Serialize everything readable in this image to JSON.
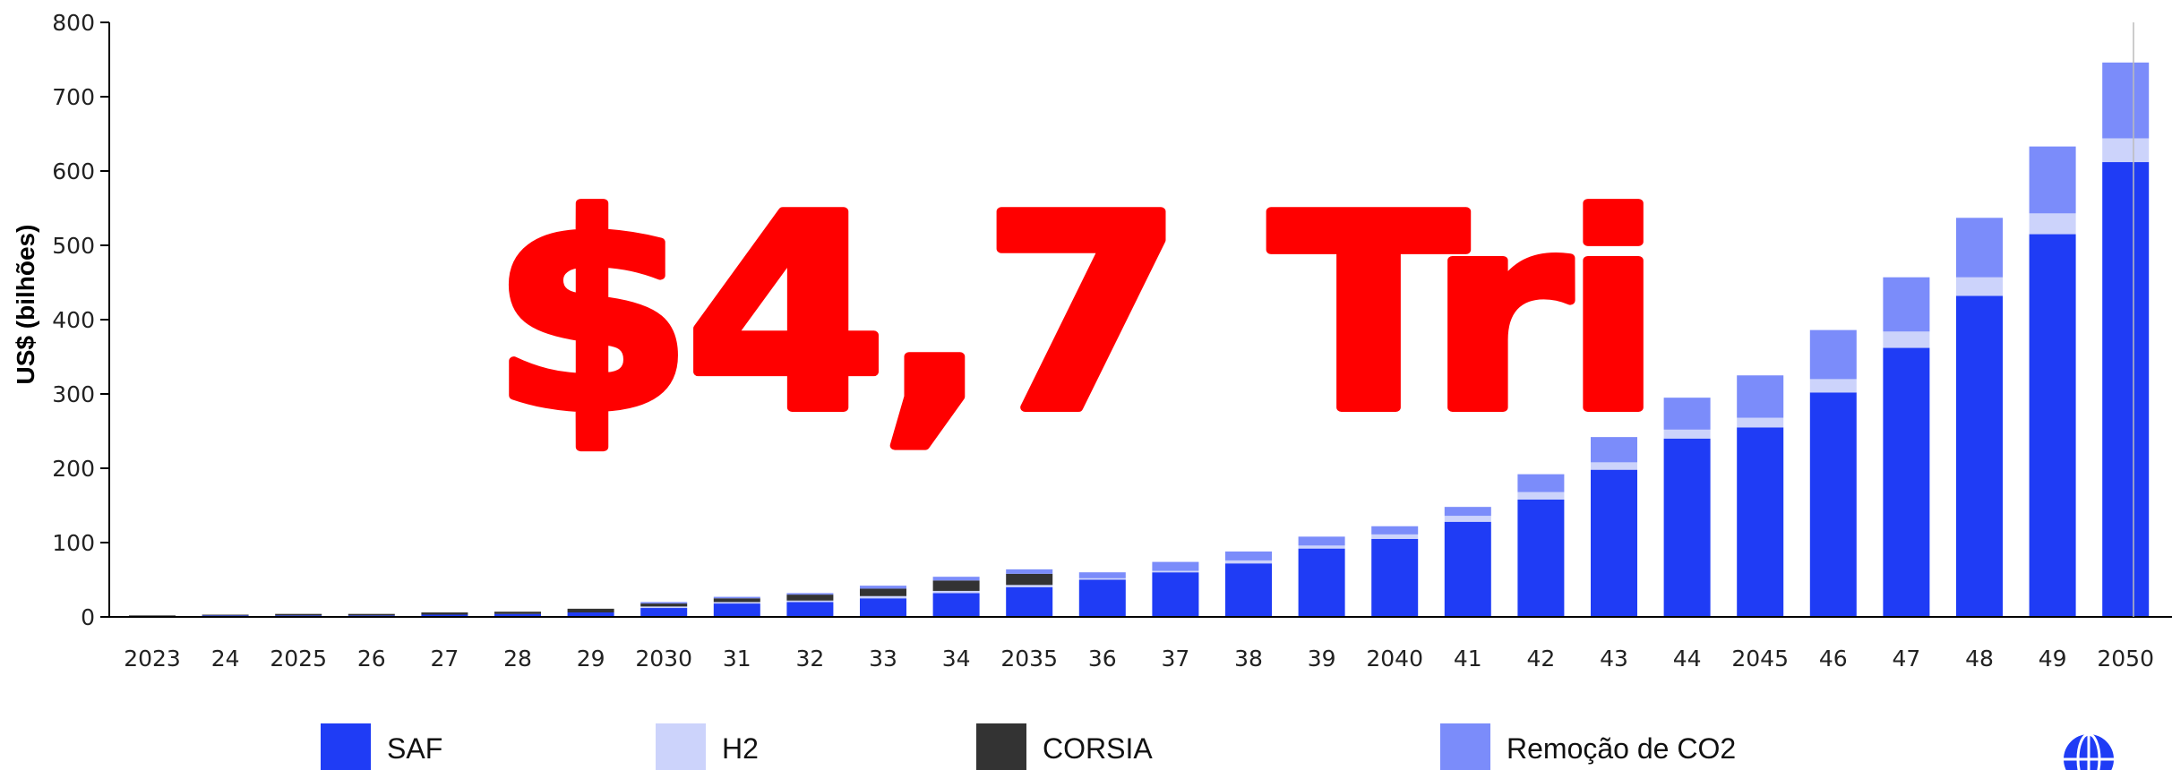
{
  "chart_data": {
    "type": "bar",
    "stacked": true,
    "overlay_text": "$4,7 Tri",
    "ylabel": "US$ (bilhões)",
    "xlabel": "",
    "ylim": [
      0,
      800
    ],
    "yticks": [
      0,
      100,
      200,
      300,
      400,
      500,
      600,
      700,
      800
    ],
    "categories": [
      "2023",
      "24",
      "2025",
      "26",
      "27",
      "28",
      "29",
      "2030",
      "31",
      "32",
      "33",
      "34",
      "2035",
      "36",
      "37",
      "38",
      "39",
      "2040",
      "41",
      "42",
      "43",
      "44",
      "2045",
      "46",
      "47",
      "48",
      "49",
      "2050"
    ],
    "series": [
      {
        "name": "SAF",
        "color": "#1f3cf5",
        "values": [
          1,
          2,
          2,
          2,
          3,
          4,
          6,
          12,
          18,
          20,
          25,
          32,
          40,
          50,
          60,
          72,
          92,
          105,
          128,
          158,
          198,
          240,
          255,
          302,
          362,
          432,
          515,
          612
        ]
      },
      {
        "name": "H2",
        "color": "#ccd3fb",
        "values": [
          0,
          0,
          0,
          0,
          0,
          0,
          0,
          2,
          2,
          2,
          3,
          3,
          3,
          2,
          2,
          4,
          4,
          6,
          8,
          10,
          10,
          12,
          13,
          18,
          22,
          25,
          28,
          32
        ]
      },
      {
        "name": "CORSIA",
        "color": "#333333",
        "values": [
          1,
          1,
          2,
          2,
          3,
          3,
          5,
          4,
          5,
          8,
          10,
          14,
          15,
          0,
          0,
          0,
          0,
          0,
          0,
          0,
          0,
          0,
          0,
          0,
          0,
          0,
          0,
          0
        ]
      },
      {
        "name": "Remoção de CO2",
        "color": "#7b8cfa",
        "values": [
          0,
          0,
          0,
          0,
          0,
          0,
          0,
          2,
          2,
          2,
          4,
          5,
          6,
          8,
          12,
          12,
          12,
          11,
          12,
          24,
          34,
          43,
          57,
          66,
          73,
          80,
          90,
          102
        ]
      }
    ],
    "legend_position": "bottom",
    "grid": false
  }
}
